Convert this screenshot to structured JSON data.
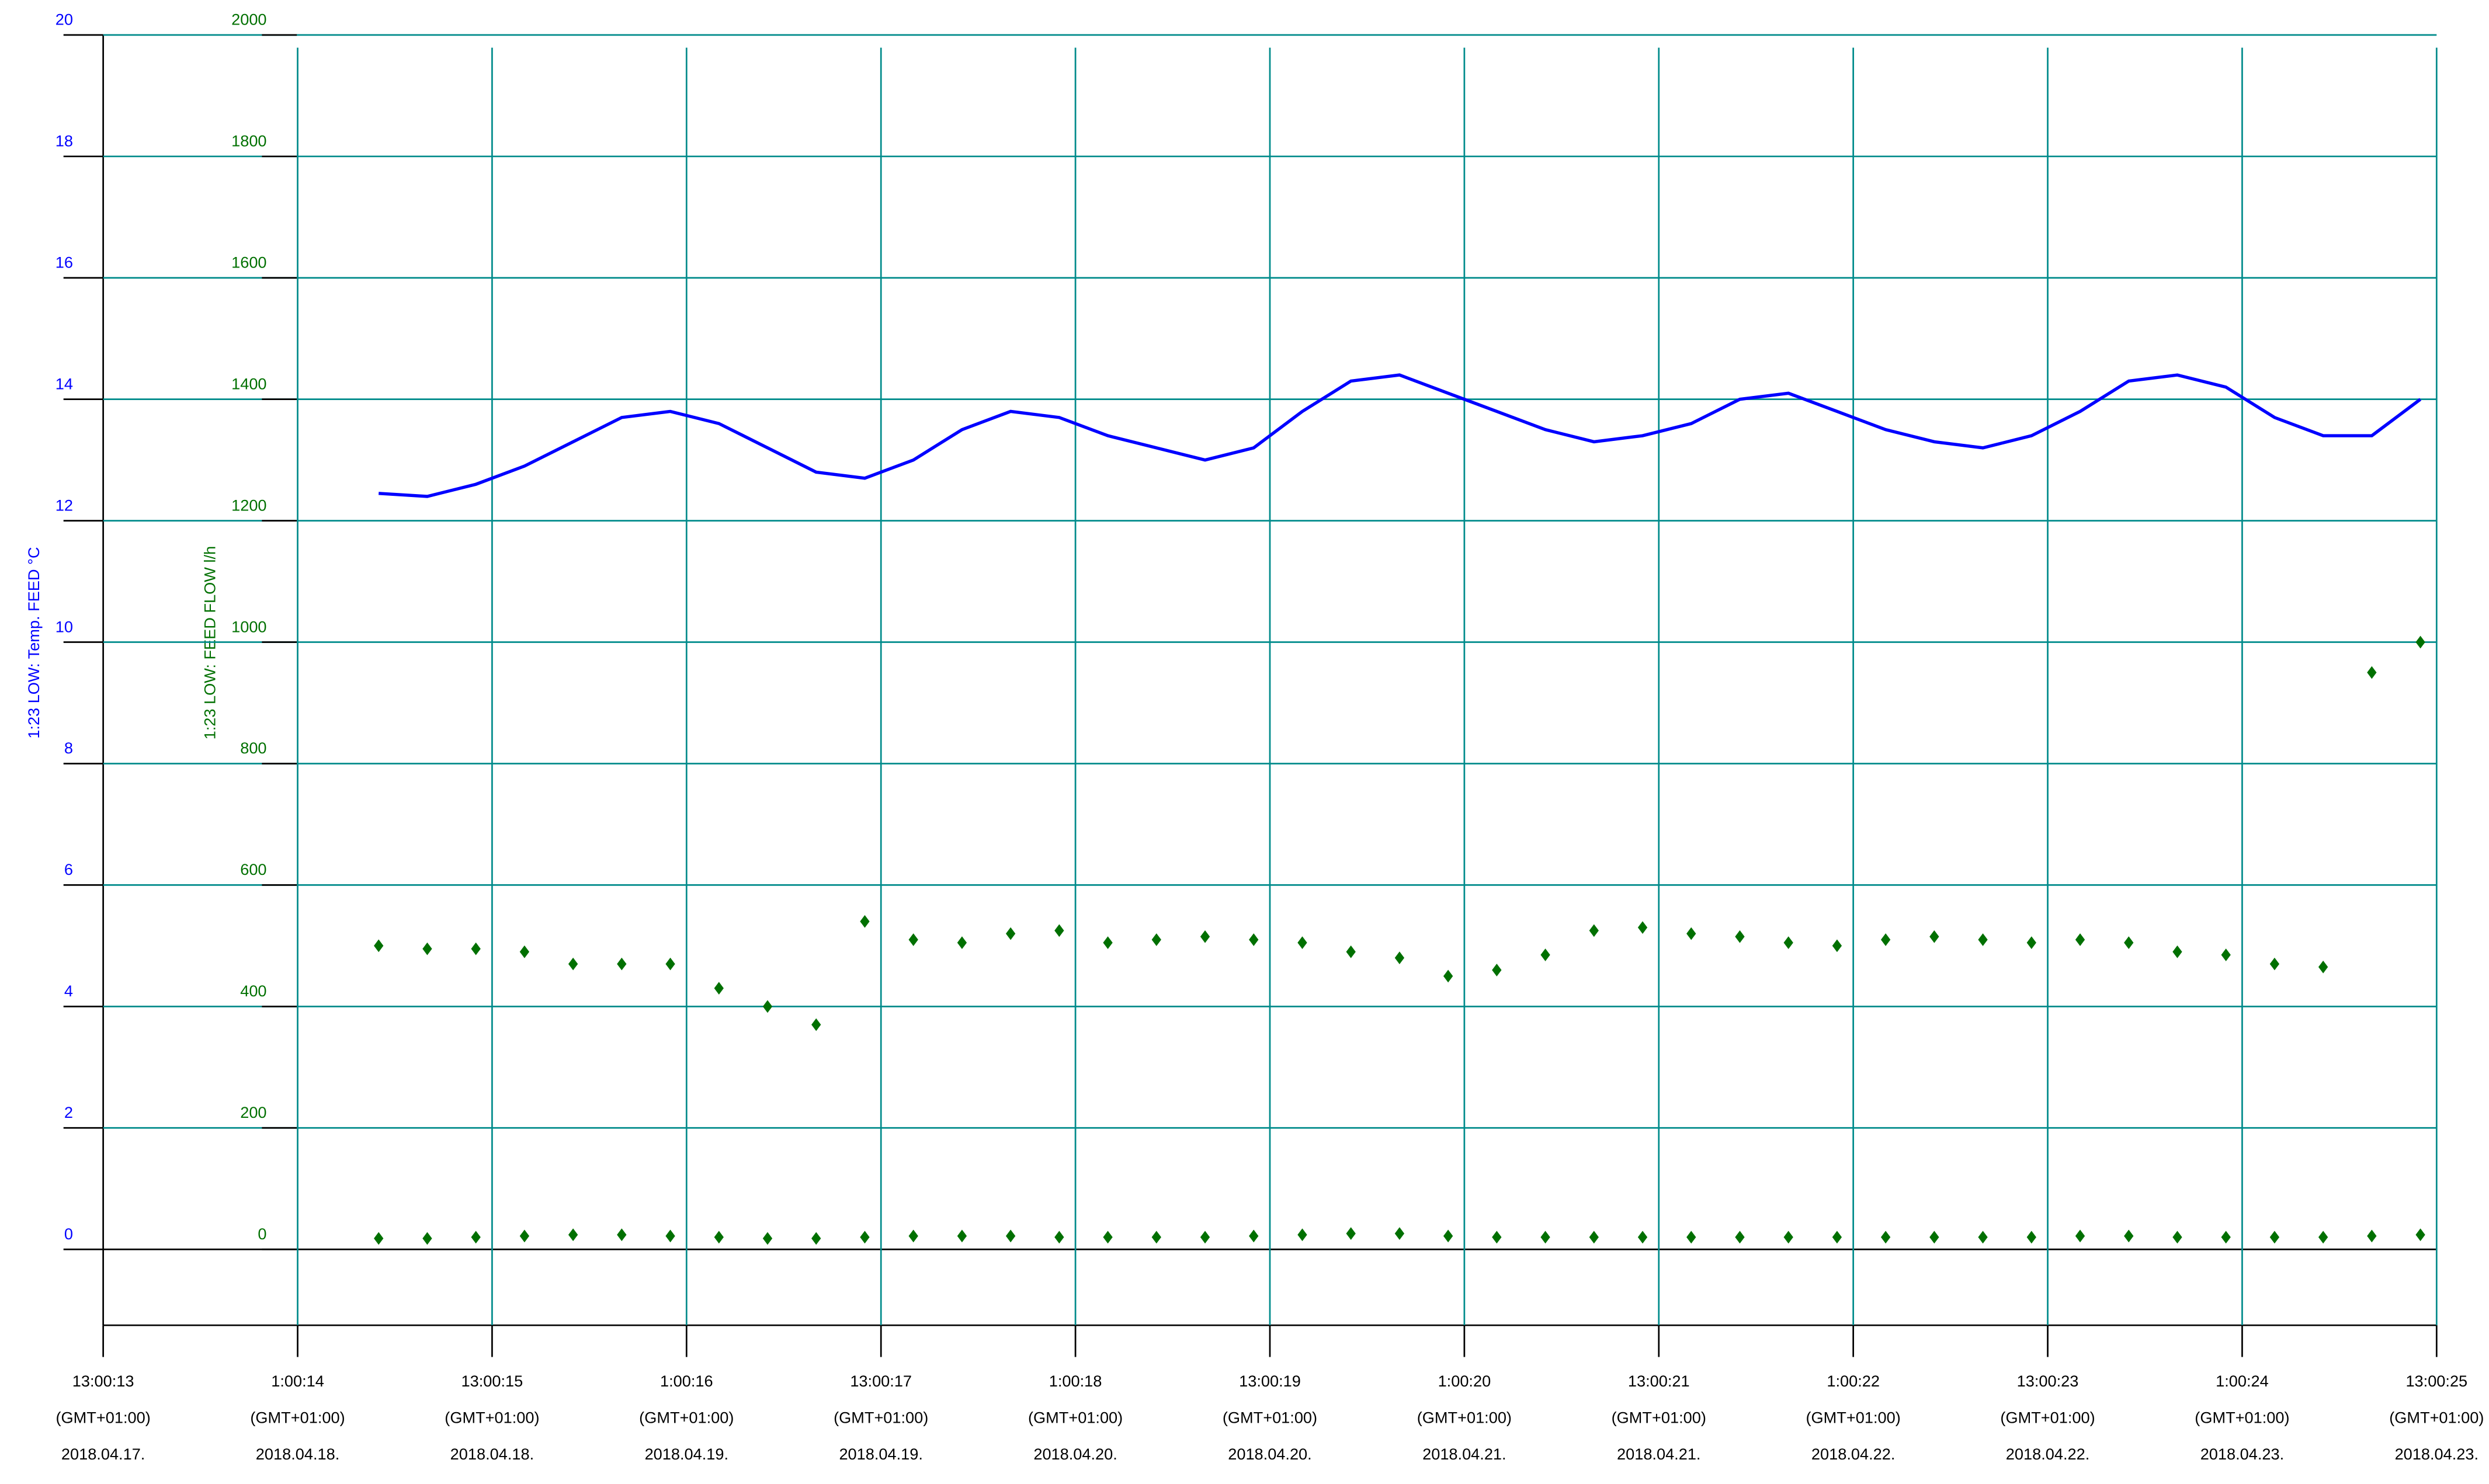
{
  "chart_data": {
    "type": "line-scatter",
    "y_label": "1:23 LOW: Temp. FEED °C",
    "y2_label": "1:23 LOW: FEED FLOW l/h",
    "ylim": [
      -1.25,
      20
    ],
    "yticks": [
      0,
      2,
      4,
      6,
      8,
      10,
      12,
      14,
      16,
      18,
      20
    ],
    "y2lim": [
      -125,
      2000
    ],
    "y2ticks": [
      0,
      200,
      400,
      600,
      800,
      1000,
      1200,
      1400,
      1600,
      1800,
      2000
    ],
    "xlim": [
      "2018-04-17T13:00",
      "2018-04-23T13:00"
    ],
    "xticks": [
      {
        "value": "2018-04-17T13:00",
        "label": [
          "13:00:13",
          "(GMT+01:00)",
          "2018.04.17."
        ]
      },
      {
        "value": "2018-04-18T01:00",
        "label": [
          "1:00:14",
          "(GMT+01:00)",
          "2018.04.18."
        ]
      },
      {
        "value": "2018-04-18T13:00",
        "label": [
          "13:00:15",
          "(GMT+01:00)",
          "2018.04.18."
        ]
      },
      {
        "value": "2018-04-19T01:00",
        "label": [
          "1:00:16",
          "(GMT+01:00)",
          "2018.04.19."
        ]
      },
      {
        "value": "2018-04-19T13:00",
        "label": [
          "13:00:17",
          "(GMT+01:00)",
          "2018.04.19."
        ]
      },
      {
        "value": "2018-04-20T01:00",
        "label": [
          "1:00:18",
          "(GMT+01:00)",
          "2018.04.20."
        ]
      },
      {
        "value": "2018-04-20T13:00",
        "label": [
          "13:00:19",
          "(GMT+01:00)",
          "2018.04.20."
        ]
      },
      {
        "value": "2018-04-21T01:00",
        "label": [
          "1:00:20",
          "(GMT+01:00)",
          "2018.04.21."
        ]
      },
      {
        "value": "2018-04-21T13:00",
        "label": [
          "13:00:21",
          "(GMT+01:00)",
          "2018.04.21."
        ]
      },
      {
        "value": "2018-04-22T01:00",
        "label": [
          "1:00:22",
          "(GMT+01:00)",
          "2018.04.22."
        ]
      },
      {
        "value": "2018-04-22T13:00",
        "label": [
          "13:00:23",
          "(GMT+01:00)",
          "2018.04.22."
        ]
      },
      {
        "value": "2018-04-23T01:00",
        "label": [
          "1:00:24",
          "(GMT+01:00)",
          "2018.04.23."
        ]
      },
      {
        "value": "2018-04-23T13:00",
        "label": [
          "13:00:25",
          "(GMT+01:00)",
          "2018.04.23."
        ]
      }
    ],
    "grid": true,
    "x": [
      "2018-04-18T06:00",
      "2018-04-18T09:00",
      "2018-04-18T12:00",
      "2018-04-18T15:00",
      "2018-04-18T18:00",
      "2018-04-18T21:00",
      "2018-04-19T00:00",
      "2018-04-19T03:00",
      "2018-04-19T06:00",
      "2018-04-19T09:00",
      "2018-04-19T12:00",
      "2018-04-19T15:00",
      "2018-04-19T18:00",
      "2018-04-19T21:00",
      "2018-04-20T00:00",
      "2018-04-20T03:00",
      "2018-04-20T06:00",
      "2018-04-20T09:00",
      "2018-04-20T12:00",
      "2018-04-20T15:00",
      "2018-04-20T18:00",
      "2018-04-20T21:00",
      "2018-04-21T00:00",
      "2018-04-21T03:00",
      "2018-04-21T06:00",
      "2018-04-21T09:00",
      "2018-04-21T12:00",
      "2018-04-21T15:00",
      "2018-04-21T18:00",
      "2018-04-21T21:00",
      "2018-04-22T00:00",
      "2018-04-22T03:00",
      "2018-04-22T06:00",
      "2018-04-22T09:00",
      "2018-04-22T12:00",
      "2018-04-22T15:00",
      "2018-04-22T18:00",
      "2018-04-22T21:00",
      "2018-04-23T00:00",
      "2018-04-23T03:00",
      "2018-04-23T06:00",
      "2018-04-23T09:00",
      "2018-04-23T12:00"
    ],
    "series": [
      {
        "type": "line",
        "color": "#0000ff",
        "values": [
          12.45,
          12.4,
          12.6,
          12.9,
          13.3,
          13.7,
          13.8,
          13.6,
          13.2,
          12.8,
          12.7,
          13.0,
          13.5,
          13.8,
          13.7,
          13.4,
          13.2,
          13.0,
          13.2,
          13.8,
          14.3,
          14.4,
          14.1,
          13.8,
          13.5,
          13.3,
          13.4,
          13.6,
          14.0,
          14.1,
          13.8,
          13.5,
          13.3,
          13.2,
          13.4,
          13.8,
          14.3,
          14.4,
          14.2,
          13.7,
          13.4,
          13.4,
          14.0
        ]
      },
      {
        "type": "scatter",
        "axis": "y2",
        "color": "#007000",
        "values": [
          500,
          495,
          495,
          490,
          470,
          470,
          470,
          430,
          400,
          370,
          540,
          510,
          505,
          520,
          525,
          505,
          510,
          515,
          510,
          505,
          490,
          480,
          450,
          460,
          485,
          525,
          530,
          520,
          515,
          505,
          500,
          510,
          515,
          510,
          505,
          510,
          505,
          490,
          485,
          470,
          465,
          950,
          1000
        ]
      },
      {
        "type": "scatter",
        "axis": "y2",
        "color": "#007000",
        "values": [
          18,
          18,
          20,
          22,
          24,
          24,
          22,
          20,
          18,
          18,
          20,
          22,
          22,
          22,
          20,
          20,
          20,
          20,
          22,
          24,
          26,
          26,
          22,
          20,
          20,
          20,
          20,
          20,
          20,
          20,
          20,
          20,
          20,
          20,
          20,
          22,
          22,
          20,
          20,
          20,
          20,
          22,
          24
        ]
      }
    ]
  }
}
